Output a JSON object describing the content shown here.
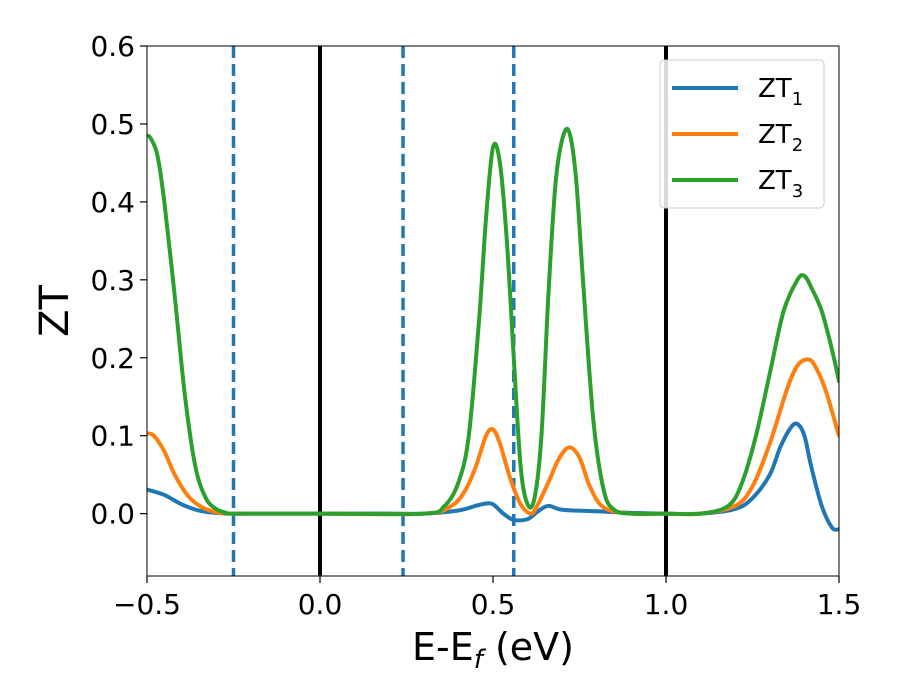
{
  "chart_data": {
    "type": "line",
    "xlabel": "E-E",
    "xlabel_sub": "f",
    "xlabel_unit": " (eV)",
    "ylabel": "ZT",
    "xlim": [
      -0.5,
      1.5
    ],
    "ylim": [
      -0.08,
      0.6
    ],
    "xticks": [
      -0.5,
      0.0,
      0.5,
      1.0,
      1.5
    ],
    "xtick_labels": [
      "−0.5",
      "0.0",
      "0.5",
      "1.0",
      "1.5"
    ],
    "yticks": [
      0.0,
      0.1,
      0.2,
      0.3,
      0.4,
      0.5,
      0.6
    ],
    "ytick_labels": [
      "0.0",
      "0.1",
      "0.2",
      "0.3",
      "0.4",
      "0.5",
      "0.6"
    ],
    "grid": false,
    "legend_position": "top-right",
    "vertical_lines": [
      {
        "x": 0.0,
        "style": "solid",
        "color": "#000000"
      },
      {
        "x": 1.0,
        "style": "solid",
        "color": "#000000"
      },
      {
        "x": -0.25,
        "style": "dashed",
        "color": "#1f77b4"
      },
      {
        "x": 0.24,
        "style": "dashed",
        "color": "#1f77b4"
      },
      {
        "x": 0.56,
        "style": "dashed",
        "color": "#1f77b4"
      }
    ],
    "series": [
      {
        "name": "ZT",
        "name_sub": "1",
        "color": "#1f77b4",
        "x": [
          -0.5,
          -0.45,
          -0.4,
          -0.35,
          -0.3,
          -0.25,
          -0.2,
          0.0,
          0.2,
          0.3,
          0.4,
          0.45,
          0.48,
          0.5,
          0.53,
          0.56,
          0.6,
          0.63,
          0.66,
          0.7,
          0.8,
          0.9,
          1.0,
          1.1,
          1.2,
          1.25,
          1.3,
          1.33,
          1.36,
          1.38,
          1.4,
          1.42,
          1.45,
          1.48,
          1.5
        ],
        "y": [
          0.031,
          0.024,
          0.012,
          0.004,
          0.001,
          0.0,
          0.0,
          0.0,
          0.0,
          0.0,
          0.004,
          0.01,
          0.013,
          0.012,
          0.0,
          -0.008,
          -0.007,
          0.003,
          0.01,
          0.005,
          0.003,
          0.001,
          0.0,
          0.0,
          0.006,
          0.02,
          0.05,
          0.085,
          0.11,
          0.115,
          0.1,
          0.06,
          0.01,
          -0.018,
          -0.02
        ]
      },
      {
        "name": "ZT",
        "name_sub": "2",
        "color": "#ff7f0e",
        "x": [
          -0.5,
          -0.48,
          -0.45,
          -0.42,
          -0.38,
          -0.34,
          -0.3,
          -0.25,
          0.0,
          0.3,
          0.38,
          0.42,
          0.45,
          0.48,
          0.5,
          0.52,
          0.55,
          0.58,
          0.61,
          0.63,
          0.66,
          0.69,
          0.72,
          0.75,
          0.78,
          0.82,
          0.9,
          1.0,
          1.1,
          1.2,
          1.25,
          1.3,
          1.35,
          1.38,
          1.41,
          1.43,
          1.46,
          1.5
        ],
        "y": [
          0.103,
          0.1,
          0.08,
          0.05,
          0.022,
          0.008,
          0.002,
          0.0,
          0.0,
          0.0,
          0.01,
          0.03,
          0.06,
          0.1,
          0.108,
          0.09,
          0.045,
          0.012,
          0.0,
          0.012,
          0.04,
          0.07,
          0.085,
          0.072,
          0.035,
          0.008,
          0.0,
          0.0,
          0.0,
          0.01,
          0.035,
          0.09,
          0.16,
          0.19,
          0.198,
          0.19,
          0.16,
          0.1
        ]
      },
      {
        "name": "ZT",
        "name_sub": "3",
        "color": "#2ca02c",
        "x": [
          -0.5,
          -0.49,
          -0.47,
          -0.45,
          -0.42,
          -0.39,
          -0.36,
          -0.33,
          -0.3,
          -0.27,
          -0.25,
          0.0,
          0.3,
          0.36,
          0.4,
          0.43,
          0.46,
          0.48,
          0.5,
          0.52,
          0.54,
          0.56,
          0.58,
          0.6,
          0.62,
          0.64,
          0.66,
          0.68,
          0.7,
          0.72,
          0.74,
          0.76,
          0.79,
          0.82,
          0.85,
          0.9,
          1.0,
          1.1,
          1.18,
          1.22,
          1.26,
          1.3,
          1.34,
          1.38,
          1.4,
          1.42,
          1.45,
          1.48,
          1.5
        ],
        "y": [
          0.485,
          0.482,
          0.46,
          0.4,
          0.28,
          0.15,
          0.06,
          0.02,
          0.006,
          0.001,
          0.0,
          0.0,
          0.0,
          0.01,
          0.04,
          0.1,
          0.25,
          0.38,
          0.47,
          0.45,
          0.35,
          0.2,
          0.06,
          0.012,
          0.02,
          0.1,
          0.28,
          0.42,
          0.48,
          0.49,
          0.43,
          0.3,
          0.12,
          0.03,
          0.005,
          0.0,
          0.0,
          0.0,
          0.01,
          0.04,
          0.1,
          0.18,
          0.26,
          0.3,
          0.305,
          0.29,
          0.26,
          0.21,
          0.17
        ]
      }
    ]
  }
}
